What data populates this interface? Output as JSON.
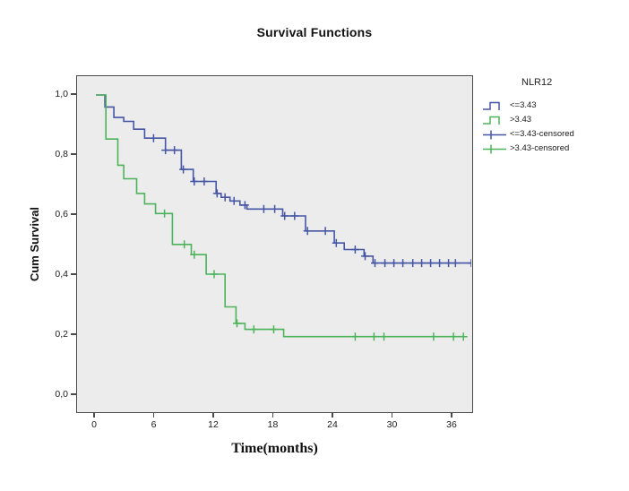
{
  "title": "Survival Functions",
  "axes": {
    "y_label": "Cum Survival",
    "x_label": "Time(months)"
  },
  "legend": {
    "title": "NLR12",
    "entries": [
      {
        "id": "le343",
        "label": "<=3.43",
        "symbol": "step",
        "color": "#4556a4"
      },
      {
        "id": "gt343",
        "label": ">3.43",
        "symbol": "step",
        "color": "#4db35a"
      },
      {
        "id": "le343-censored",
        "label": "<=3.43-censored",
        "symbol": "censor",
        "color": "#4556a4"
      },
      {
        "id": "gt343-censored",
        "label": ">3.43-censored",
        "symbol": "censor",
        "color": "#4db35a"
      }
    ]
  },
  "chart_data": {
    "type": "line",
    "subtype": "kaplan-meier-step",
    "title": "Survival Functions",
    "xlabel": "Time(months)",
    "ylabel": "Cum Survival",
    "xlim": [
      0,
      38.2
    ],
    "ylim": [
      0.0,
      1.0
    ],
    "grid": false,
    "legend_position": "right",
    "plot_background": "#ececec",
    "x_ticks": [
      {
        "label": "0",
        "value": 0
      },
      {
        "label": "6",
        "value": 6
      },
      {
        "label": "12",
        "value": 12
      },
      {
        "label": "18",
        "value": 18
      },
      {
        "label": "24",
        "value": 24
      },
      {
        "label": "30",
        "value": 30
      },
      {
        "label": "36",
        "value": 36
      }
    ],
    "y_ticks": [
      {
        "label": "0,0",
        "value": 0.0
      },
      {
        "label": "0,2",
        "value": 0.2
      },
      {
        "label": "0,4",
        "value": 0.4
      },
      {
        "label": "0,6",
        "value": 0.6
      },
      {
        "label": "0,8",
        "value": 0.8
      },
      {
        "label": "1,0",
        "value": 1.0
      }
    ],
    "series": [
      {
        "id": "le343",
        "name": "<=3.43",
        "color": "#4556a4",
        "end_time": 38.1,
        "steps": [
          [
            0.1,
            1.0
          ],
          [
            1.0,
            0.96
          ],
          [
            1.9,
            0.925
          ],
          [
            2.9,
            0.912
          ],
          [
            3.9,
            0.886
          ],
          [
            5.0,
            0.856
          ],
          [
            7.1,
            0.816
          ],
          [
            8.7,
            0.752
          ],
          [
            9.9,
            0.712
          ],
          [
            12.2,
            0.672
          ],
          [
            12.7,
            0.659
          ],
          [
            13.6,
            0.647
          ],
          [
            14.6,
            0.633
          ],
          [
            15.3,
            0.62
          ],
          [
            18.9,
            0.597
          ],
          [
            21.2,
            0.547
          ],
          [
            24.1,
            0.507
          ],
          [
            25.1,
            0.485
          ],
          [
            27.1,
            0.463
          ],
          [
            28.0,
            0.44
          ]
        ],
        "censored": [
          [
            5.9,
            0.856
          ],
          [
            7.1,
            0.816
          ],
          [
            8.0,
            0.816
          ],
          [
            8.9,
            0.752
          ],
          [
            10.0,
            0.712
          ],
          [
            11.0,
            0.712
          ],
          [
            12.3,
            0.672
          ],
          [
            13.1,
            0.659
          ],
          [
            14.0,
            0.647
          ],
          [
            15.1,
            0.633
          ],
          [
            17.0,
            0.62
          ],
          [
            18.1,
            0.62
          ],
          [
            19.1,
            0.597
          ],
          [
            20.1,
            0.597
          ],
          [
            21.4,
            0.547
          ],
          [
            23.2,
            0.547
          ],
          [
            24.3,
            0.507
          ],
          [
            26.2,
            0.485
          ],
          [
            27.2,
            0.463
          ],
          [
            28.2,
            0.44
          ],
          [
            29.2,
            0.44
          ],
          [
            30.1,
            0.44
          ],
          [
            31.0,
            0.44
          ],
          [
            32.0,
            0.44
          ],
          [
            32.9,
            0.44
          ],
          [
            33.8,
            0.44
          ],
          [
            34.7,
            0.44
          ],
          [
            35.6,
            0.44
          ],
          [
            36.3,
            0.44
          ],
          [
            37.9,
            0.44
          ]
        ]
      },
      {
        "id": "gt343",
        "name": ">3.43",
        "color": "#4db35a",
        "end_time": 37.2,
        "steps": [
          [
            0.1,
            1.0
          ],
          [
            1.1,
            0.853
          ],
          [
            2.3,
            0.766
          ],
          [
            2.9,
            0.721
          ],
          [
            4.2,
            0.672
          ],
          [
            5.0,
            0.637
          ],
          [
            6.1,
            0.605
          ],
          [
            7.8,
            0.502
          ],
          [
            9.7,
            0.468
          ],
          [
            11.2,
            0.403
          ],
          [
            13.1,
            0.294
          ],
          [
            14.2,
            0.239
          ],
          [
            15.1,
            0.219
          ],
          [
            19.0,
            0.195
          ]
        ],
        "censored": [
          [
            7.0,
            0.605
          ],
          [
            9.0,
            0.502
          ],
          [
            10.0,
            0.468
          ],
          [
            12.0,
            0.403
          ],
          [
            14.3,
            0.239
          ],
          [
            16.0,
            0.219
          ],
          [
            18.0,
            0.219
          ],
          [
            26.2,
            0.195
          ],
          [
            28.1,
            0.195
          ],
          [
            29.1,
            0.195
          ],
          [
            34.1,
            0.195
          ],
          [
            36.1,
            0.195
          ],
          [
            37.1,
            0.195
          ]
        ]
      }
    ]
  }
}
